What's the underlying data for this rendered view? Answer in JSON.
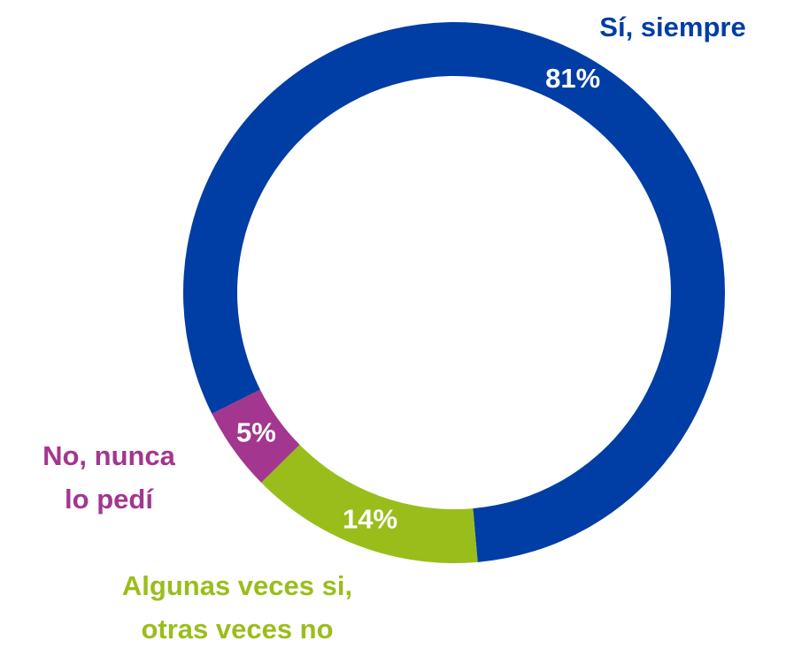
{
  "chart_data": {
    "type": "donut",
    "categories": [
      "Sí, siempre",
      "Algunas veces si,\notras veces no",
      "No, nunca\nlo pedí"
    ],
    "values": [
      81,
      14,
      5
    ],
    "value_labels": [
      "81%",
      "14%",
      "5%"
    ],
    "colors": [
      "#003DA5",
      "#99BE1B",
      "#A3368F"
    ]
  }
}
